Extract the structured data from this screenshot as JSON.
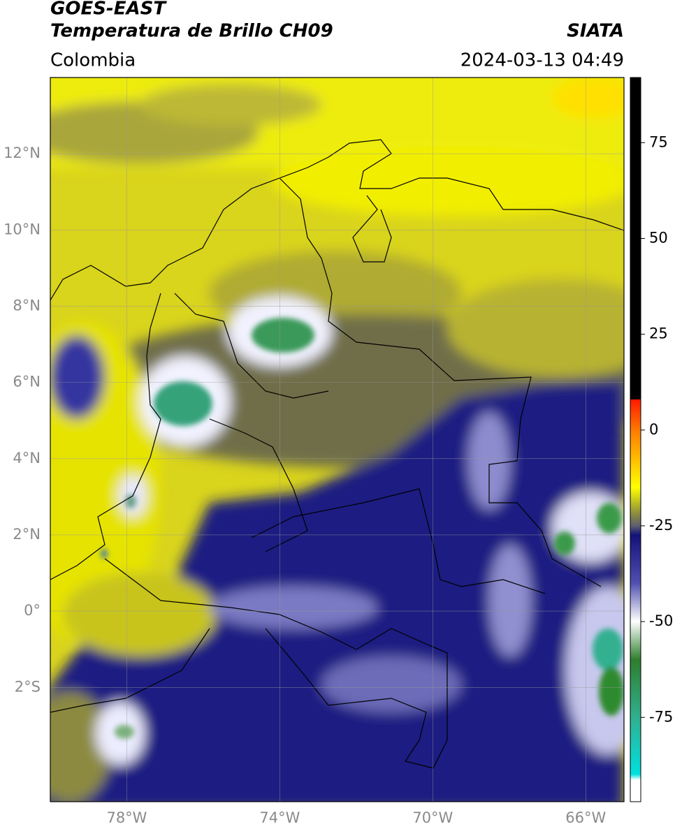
{
  "map": {
    "title": "GOES-EAST",
    "subtitle": "Temperatura de Brillo CH09",
    "source": "SIATA",
    "region": "Colombia",
    "datetime": "2024-03-13 04:49",
    "lonlim": [
      -80,
      -65
    ],
    "latlim": [
      -5,
      14
    ],
    "lonticks": [
      {
        "value": -78,
        "label": "78°W"
      },
      {
        "value": -74,
        "label": "74°W"
      },
      {
        "value": -70,
        "label": "70°W"
      },
      {
        "value": -66,
        "label": "66°W"
      }
    ],
    "latticks": [
      {
        "value": 12,
        "label": "12°N"
      },
      {
        "value": 10,
        "label": "10°N"
      },
      {
        "value": 8,
        "label": "8°N"
      },
      {
        "value": 6,
        "label": "6°N"
      },
      {
        "value": 4,
        "label": "4°N"
      },
      {
        "value": 2,
        "label": "2°N"
      },
      {
        "value": 0,
        "label": "0°"
      },
      {
        "value": -2,
        "label": "2°S"
      }
    ],
    "grid": true,
    "colorbar": {
      "clim": [
        -97,
        92
      ],
      "ticks": [
        75,
        50,
        25,
        0,
        -25,
        -50,
        -75
      ]
    }
  }
}
